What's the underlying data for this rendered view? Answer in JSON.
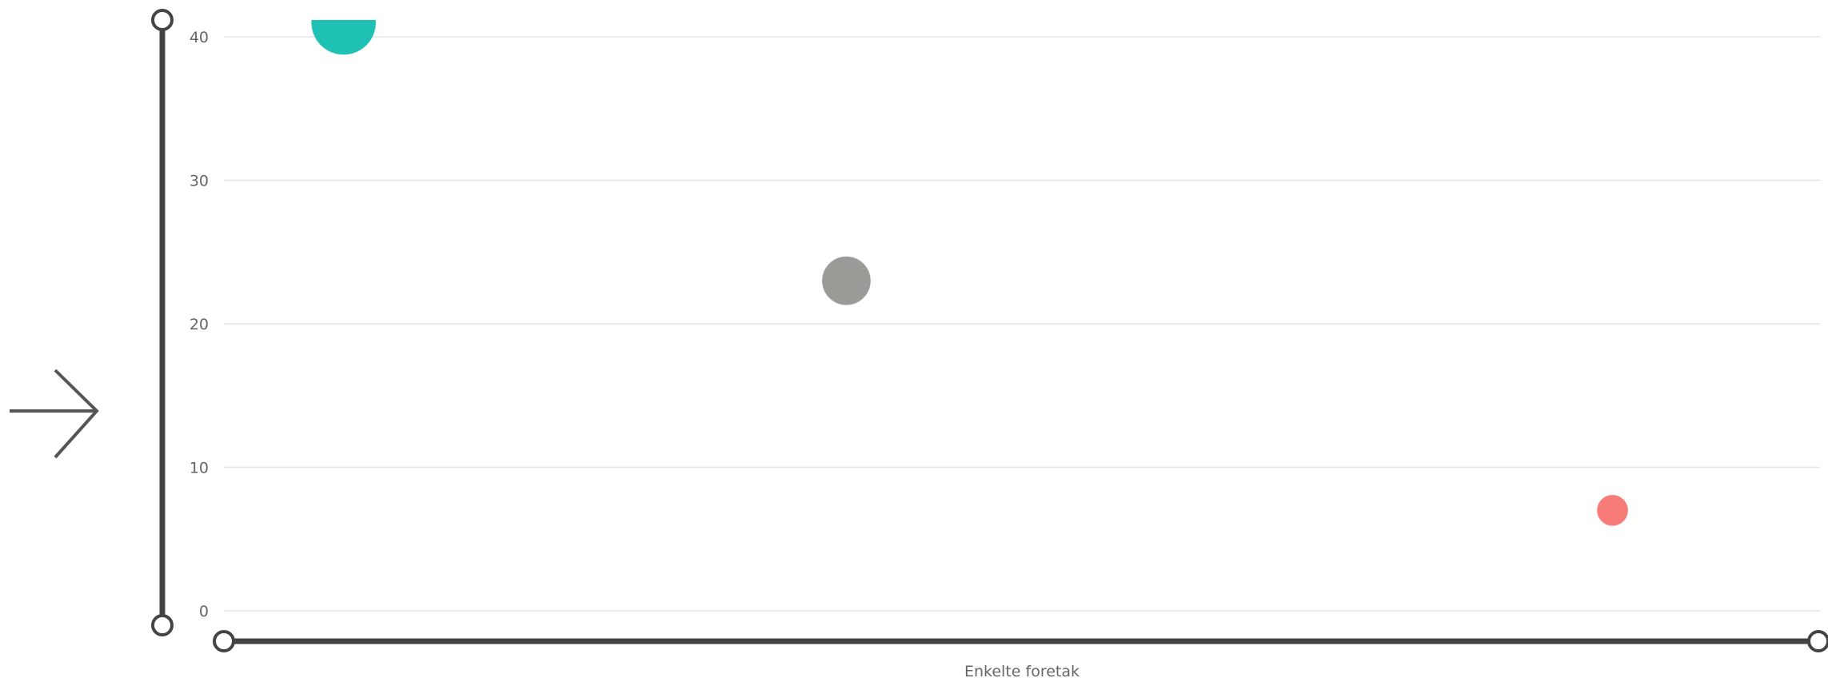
{
  "nav": {
    "arrow_icon": "arrow-right-icon"
  },
  "chart_data": {
    "type": "scatter",
    "xlabel": "Enkelte foretak",
    "ylabel": "",
    "ylim": [
      0,
      40
    ],
    "yticks": [
      0,
      10,
      20,
      30,
      40
    ],
    "xlim": [
      0,
      100
    ],
    "grid": true,
    "points": [
      {
        "x": 7.5,
        "y": 41,
        "size": 40,
        "color": "#1fc1b4"
      },
      {
        "x": 39,
        "y": 23,
        "size": 30,
        "color": "#999b96"
      },
      {
        "x": 87,
        "y": 7,
        "size": 19,
        "color": "#f77b77"
      }
    ]
  },
  "colors": {
    "track": "#444444",
    "grid": "#e6e6e6",
    "label": "#666666"
  }
}
